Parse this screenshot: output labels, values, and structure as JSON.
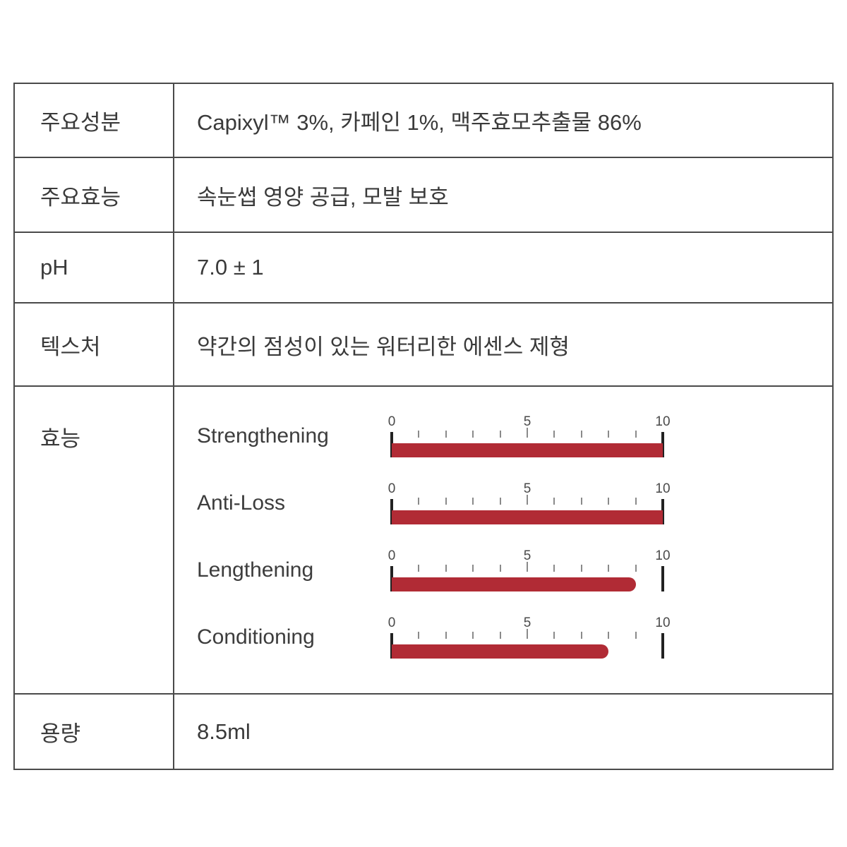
{
  "page": {
    "background": "#ffffff"
  },
  "table": {
    "border_color": "#4a4a4a",
    "rows": [
      {
        "label": "주요성분",
        "value": "Capixyl™ 3%, 카페인 1%, 맥주효모추출물 86%"
      },
      {
        "label": "주요효능",
        "value": "속눈썹 영양 공급, 모발 보호"
      },
      {
        "label": "pH",
        "value": "7.0 ± 1"
      },
      {
        "label": "텍스처",
        "value": "약간의 점성이 있는 워터리한 에센스 제형"
      },
      {
        "label": "효능"
      },
      {
        "label": "용량",
        "value": "8.5ml"
      }
    ]
  },
  "chart_data": {
    "type": "bar",
    "orientation": "horizontal",
    "categories": [
      "Strengthening",
      "Anti-Loss",
      "Lengthening",
      "Conditioning"
    ],
    "values": [
      10,
      10,
      9,
      8
    ],
    "xlim": [
      0,
      10
    ],
    "axis_tick_labels": [
      "0",
      "5",
      "10"
    ],
    "minor_tick_step": 1,
    "bar_color": "#b12b35",
    "grid": false,
    "legend": false
  }
}
